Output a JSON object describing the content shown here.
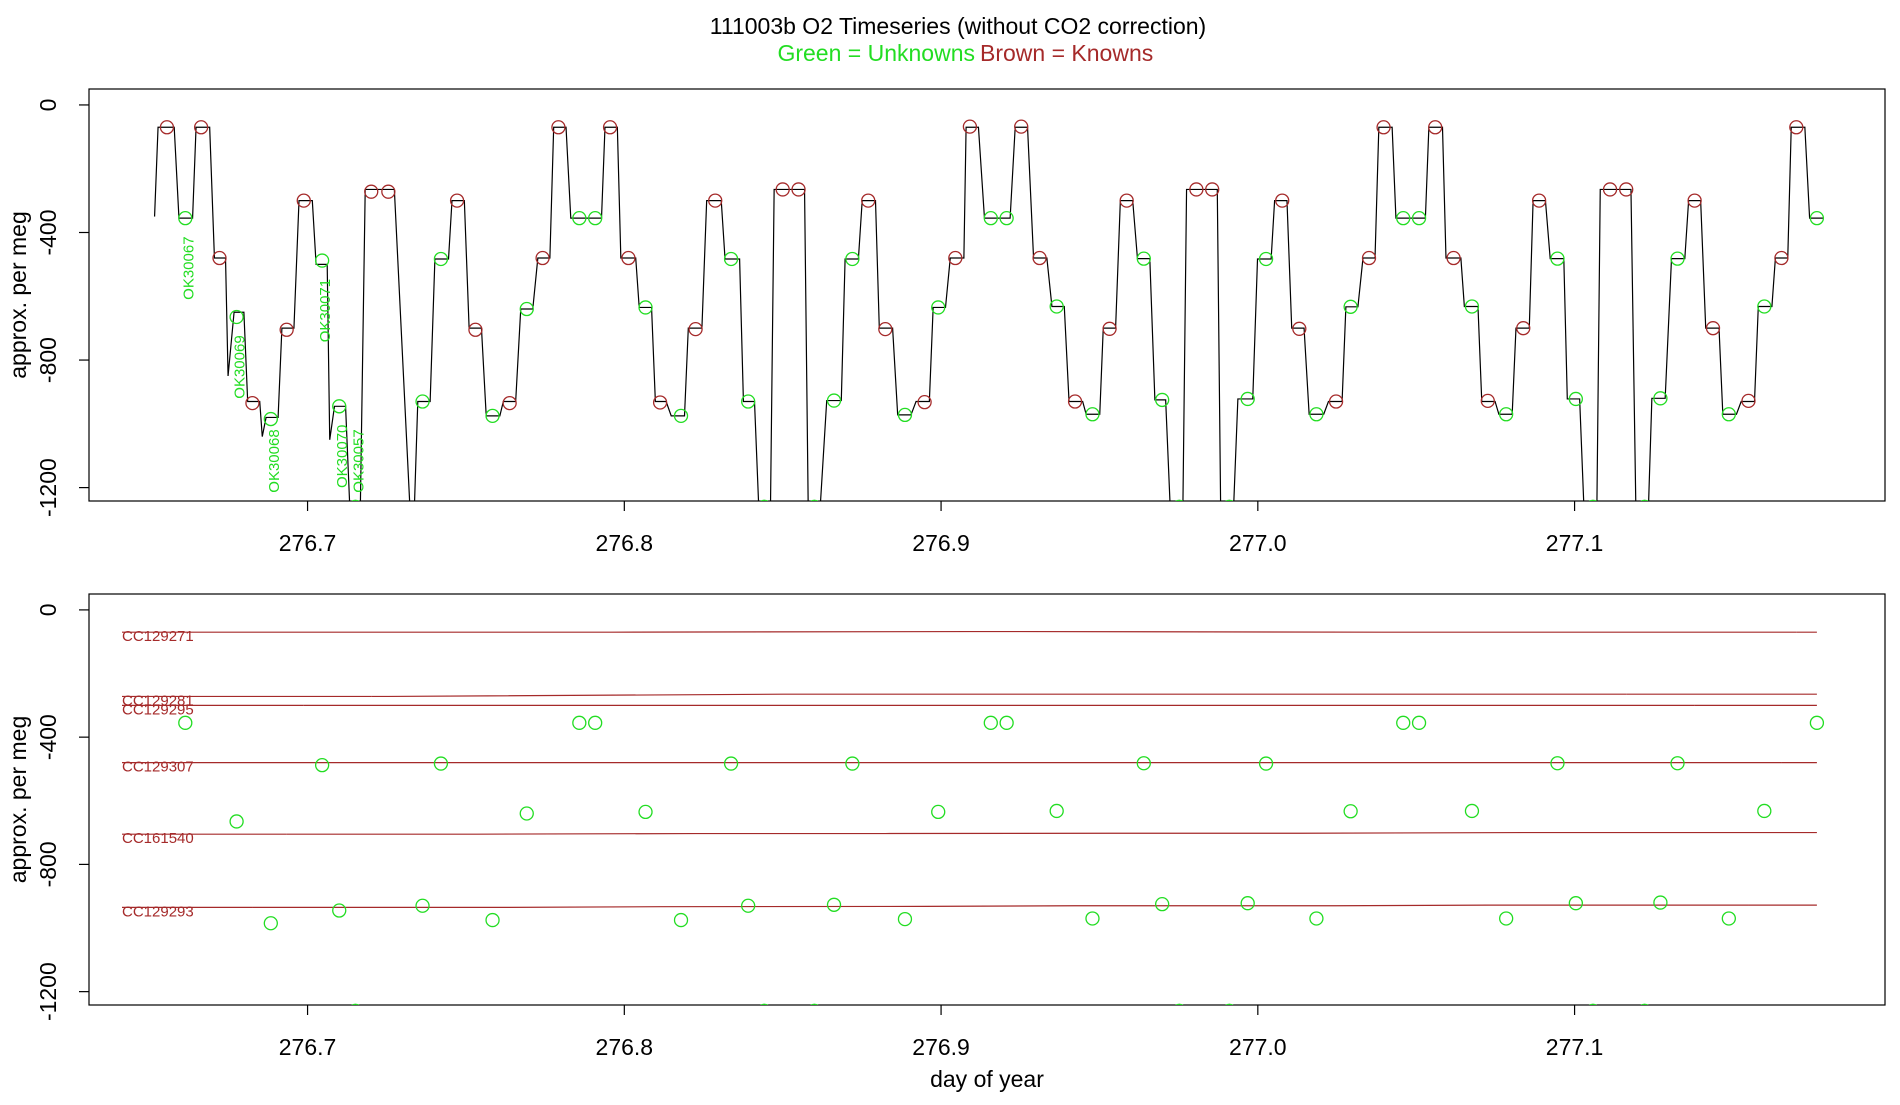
{
  "title": "111003b   O2 Timeseries (without CO2 correction)",
  "legend": [
    {
      "text": "Green = Unknowns",
      "color": "#22dd22"
    },
    {
      "text": "Brown = Knowns",
      "color": "#a52a2a"
    }
  ],
  "chart_data": [
    {
      "type": "line",
      "ylabel": "approx. per meg",
      "xlim": [
        276.631,
        277.198
      ],
      "ylim": [
        -1242,
        50
      ],
      "xticks": [
        276.7,
        276.8,
        276.9,
        {
          "value": 277,
          "label": "277.0"
        },
        277.1
      ],
      "yticks": [
        0,
        -400,
        -800,
        -1200
      ],
      "trace": {
        "color": "#000000",
        "x": [
          276.6517,
          276.6528,
          276.6579,
          276.6594,
          276.6637,
          276.6648,
          276.6691,
          276.6706,
          276.6741,
          276.6749,
          276.6768,
          276.6799,
          276.6811,
          276.6849,
          276.6857,
          276.6869,
          276.6907,
          276.6919,
          276.6957,
          276.6973,
          276.7015,
          276.7027,
          276.7062,
          276.707,
          276.7085,
          276.712,
          276.7135,
          276.7166,
          276.7182,
          276.7274,
          276.7325,
          276.7336,
          276.7348,
          276.7387,
          276.7402,
          276.7445,
          276.7456,
          276.7495,
          276.751,
          276.7549,
          276.7564,
          276.7607,
          276.7618,
          276.7657,
          276.7673,
          276.7711,
          276.7727,
          276.7765,
          276.7777,
          276.7816,
          276.7831,
          276.7928,
          276.7939,
          276.7978,
          276.7989,
          276.8036,
          276.8047,
          276.8086,
          276.8098,
          276.8132,
          276.8148,
          276.819,
          276.8202,
          276.8245,
          276.826,
          276.8306,
          276.8318,
          276.8364,
          276.8376,
          276.8411,
          276.8426,
          276.8461,
          276.8473,
          276.8569,
          276.8581,
          276.8616,
          276.8639,
          276.8685,
          276.8697,
          276.8739,
          276.8751,
          276.8793,
          276.8805,
          276.8847,
          276.8863,
          276.8905,
          276.8921,
          276.8963,
          276.8975,
          276.9014,
          276.9029,
          276.9072,
          276.9079,
          276.9118,
          276.9137,
          276.9218,
          276.9234,
          276.9273,
          276.9292,
          276.9334,
          276.935,
          276.9389,
          276.9404,
          276.9447,
          276.9458,
          276.9501,
          276.9512,
          276.9551,
          276.9566,
          276.9605,
          276.962,
          276.9659,
          276.9675,
          276.9709,
          276.9725,
          276.9763,
          276.9775,
          276.9872,
          276.9883,
          276.9922,
          276.9937,
          276.9984,
          276.9999,
          277.0042,
          277.0053,
          277.0092,
          277.0107,
          277.0146,
          277.0162,
          277.0208,
          277.0223,
          277.0266,
          277.0278,
          277.0316,
          277.0332,
          277.037,
          277.0382,
          277.0424,
          277.0436,
          277.0529,
          277.054,
          277.0583,
          277.0594,
          277.0641,
          277.0652,
          277.0695,
          277.0707,
          277.0749,
          277.0761,
          277.0803,
          277.0815,
          277.0857,
          277.0869,
          277.0908,
          277.0923,
          277.0966,
          277.0977,
          277.1016,
          277.1031,
          277.107,
          277.1081,
          277.1178,
          277.1194,
          277.1232,
          277.1244,
          277.1286,
          277.1306,
          277.1348,
          277.136,
          277.1398,
          277.1414,
          277.1456,
          277.1468,
          277.1511,
          277.1526,
          277.1568,
          277.158,
          277.1623,
          277.1634,
          277.1673,
          277.1684,
          277.1727,
          277.1742,
          277.1785
        ],
        "y": [
          -350,
          -70,
          -70,
          -355,
          -355,
          -70,
          -70,
          -480,
          -480,
          -850,
          -650,
          -650,
          -930,
          -930,
          -1040,
          -980,
          -980,
          -700,
          -700,
          -300,
          -300,
          -500,
          -500,
          -1050,
          -945,
          -945,
          -1300,
          -1300,
          -265,
          -265,
          -1300,
          -1300,
          -930,
          -930,
          -483,
          -483,
          -300,
          -300,
          -700,
          -700,
          -975,
          -975,
          -930,
          -930,
          -640,
          -640,
          -480,
          -480,
          -70,
          -70,
          -355,
          -355,
          -70,
          -70,
          -480,
          -480,
          -635,
          -635,
          -930,
          -930,
          -975,
          -975,
          -700,
          -700,
          -300,
          -300,
          -483,
          -483,
          -930,
          -930,
          -1300,
          -1300,
          -265,
          -265,
          -1300,
          -1300,
          -927,
          -927,
          -483,
          -483,
          -300,
          -300,
          -700,
          -700,
          -972,
          -972,
          -930,
          -930,
          -635,
          -635,
          -480,
          -480,
          -70,
          -70,
          -355,
          -355,
          -70,
          -70,
          -480,
          -480,
          -632,
          -632,
          -930,
          -930,
          -970,
          -970,
          -700,
          -700,
          -300,
          -300,
          -482,
          -482,
          -925,
          -925,
          -1300,
          -1300,
          -265,
          -265,
          -1300,
          -1300,
          -922,
          -922,
          -483,
          -483,
          -300,
          -300,
          -700,
          -700,
          -970,
          -970,
          -930,
          -930,
          -633,
          -633,
          -480,
          -480,
          -70,
          -70,
          -355,
          -355,
          -70,
          -70,
          -480,
          -480,
          -632,
          -632,
          -930,
          -930,
          -970,
          -970,
          -700,
          -700,
          -300,
          -300,
          -482,
          -482,
          -922,
          -922,
          -1300,
          -1300,
          -265,
          -265,
          -1300,
          -1300,
          -920,
          -920,
          -482,
          -482,
          -300,
          -300,
          -700,
          -700,
          -970,
          -970,
          -930,
          -930,
          -632,
          -632,
          -480,
          -480,
          -70,
          -70,
          -355,
          -355
        ]
      },
      "knowns": [
        {
          "name": "CC129271",
          "color": "#a52a2a",
          "x": [
            276.6556,
            276.6664,
            276.7792,
            276.7955,
            276.9091,
            276.9253,
            277.0397,
            277.056,
            277.17
          ],
          "y": [
            -70,
            -70,
            -70,
            -70,
            -68,
            -68,
            -70,
            -70,
            -70
          ]
        },
        {
          "name": "CC129281",
          "color": "#a52a2a",
          "x": [
            276.7201,
            276.7255,
            276.85,
            276.855,
            276.9806,
            276.9856,
            277.1112,
            277.1163
          ],
          "y": [
            -272,
            -272,
            -265,
            -265,
            -265,
            -265,
            -265,
            -265
          ]
        },
        {
          "name": "CC129295",
          "color": "#a52a2a",
          "x": [
            276.6988,
            276.7472,
            276.8287,
            276.877,
            276.9586,
            277.0077,
            277.0888,
            277.1379
          ],
          "y": [
            -300,
            -300,
            -300,
            -300,
            -300,
            -300,
            -300,
            -300
          ]
        },
        {
          "name": "CC129307",
          "color": "#a52a2a",
          "x": [
            276.6722,
            276.7742,
            276.8013,
            276.9045,
            276.9311,
            277.0351,
            277.0618,
            277.1653
          ],
          "y": [
            -480,
            -480,
            -480,
            -480,
            -480,
            -480,
            -480,
            -480
          ]
        },
        {
          "name": "CC161540",
          "color": "#a52a2a",
          "x": [
            276.6934,
            276.753,
            276.8225,
            276.8824,
            276.9532,
            277.0131,
            277.0838,
            277.1437
          ],
          "y": [
            -705,
            -705,
            -703,
            -703,
            -702,
            -702,
            -700,
            -700
          ]
        },
        {
          "name": "CC129293",
          "color": "#a52a2a",
          "x": [
            276.6826,
            276.7638,
            276.8113,
            276.8948,
            276.9423,
            277.0247,
            277.0726,
            277.1549
          ],
          "y": [
            -935,
            -935,
            -933,
            -932,
            -930,
            -930,
            -928,
            -928
          ]
        }
      ],
      "unknowns": {
        "color": "#22dd22",
        "x": [
          276.6614,
          276.6776,
          276.6884,
          276.7046,
          276.71,
          276.7151,
          276.7363,
          276.7421,
          276.7584,
          276.7692,
          276.7858,
          276.7908,
          276.8067,
          276.8179,
          276.8337,
          276.8391,
          276.8442,
          276.86,
          276.8662,
          276.872,
          276.8886,
          276.8991,
          276.9157,
          276.9207,
          276.9365,
          276.9478,
          276.964,
          276.9698,
          276.9752,
          276.991,
          276.9968,
          277.0026,
          277.0185,
          277.0293,
          277.0459,
          277.0509,
          277.0676,
          277.0784,
          277.0946,
          277.1004,
          277.1058,
          277.1221,
          277.1271,
          277.1325,
          277.1487,
          277.1599,
          277.1765
        ],
        "y": [
          -355,
          -665,
          -985,
          -488,
          -945,
          -1260,
          -930,
          -483,
          -975,
          -640,
          -355,
          -355,
          -635,
          -975,
          -483,
          -930,
          -1260,
          -1260,
          -927,
          -483,
          -972,
          -635,
          -355,
          -355,
          -632,
          -970,
          -482,
          -925,
          -1260,
          -1260,
          -922,
          -483,
          -970,
          -633,
          -355,
          -355,
          -632,
          -970,
          -482,
          -922,
          -1260,
          -1260,
          -920,
          -482,
          -970,
          -632,
          -355
        ],
        "labels": [
          "OK30067",
          "OK30069",
          "OK30068",
          "OK30071",
          "OK30070",
          "OK30057",
          null,
          null,
          null,
          null,
          null,
          null,
          null,
          null,
          null,
          null,
          null,
          null,
          null,
          null,
          null,
          null,
          null,
          null,
          null,
          null,
          null,
          null,
          null,
          null,
          null,
          null,
          null,
          null,
          null,
          null,
          null,
          null,
          null,
          null,
          null,
          null,
          null,
          null,
          null,
          null,
          null
        ]
      }
    },
    {
      "type": "scatter",
      "ylabel": "approx. per meg",
      "xlabel": "day of year",
      "xlim": [
        276.631,
        277.198
      ],
      "ylim": [
        -1242,
        50
      ],
      "xticks": [
        276.7,
        276.8,
        276.9,
        {
          "value": 277,
          "label": "277.0"
        },
        277.1
      ],
      "yticks": [
        0,
        -400,
        -800,
        -1200
      ]
    }
  ]
}
